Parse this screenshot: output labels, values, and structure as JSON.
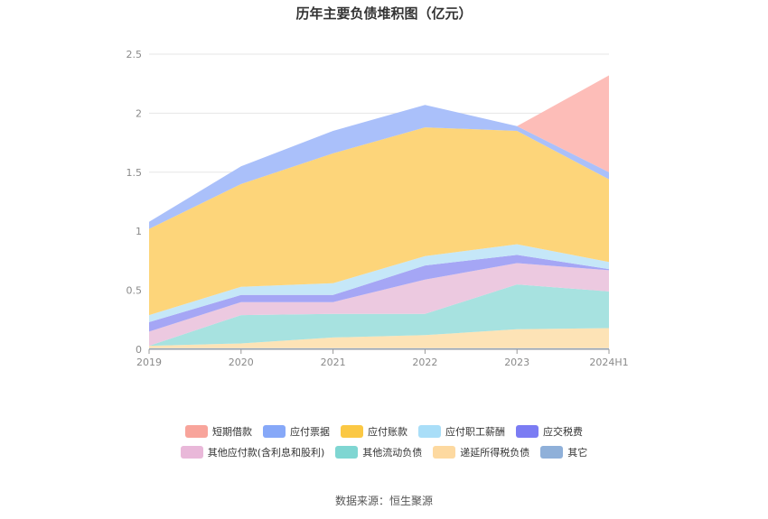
{
  "chart_data": {
    "type": "area",
    "stacked": true,
    "title": "历年主要负债堆积图（亿元）",
    "categories": [
      "2019",
      "2020",
      "2021",
      "2022",
      "2023",
      "2024H1"
    ],
    "ylim": [
      0,
      2.5
    ],
    "yticks": [
      "0",
      "0.5",
      "1",
      "1.5",
      "2",
      "2.5"
    ],
    "series": [
      {
        "name": "其它",
        "color": "#8fb0d9",
        "legend_color": "#8fb0d9",
        "values": [
          0.01,
          0.01,
          0.01,
          0.01,
          0.01,
          0.01
        ]
      },
      {
        "name": "递延所得税负债",
        "color": "#fde3b6",
        "legend_color": "#fdd9a0",
        "values": [
          0.02,
          0.04,
          0.09,
          0.11,
          0.16,
          0.17
        ]
      },
      {
        "name": "其他流动负债",
        "color": "#a7e2e0",
        "legend_color": "#7fd6d2",
        "values": [
          0.0,
          0.24,
          0.2,
          0.18,
          0.38,
          0.31
        ]
      },
      {
        "name": "其他应付款(含利息和股利)",
        "color": "#ecc9e0",
        "legend_color": "#e9b8d9",
        "values": [
          0.12,
          0.11,
          0.1,
          0.29,
          0.18,
          0.18
        ]
      },
      {
        "name": "应交税费",
        "color": "#a5a6f5",
        "legend_color": "#7b7cf3",
        "values": [
          0.08,
          0.06,
          0.06,
          0.12,
          0.07,
          0.01
        ]
      },
      {
        "name": "应付职工薪酬",
        "color": "#c5e7f8",
        "legend_color": "#a9def8",
        "values": [
          0.06,
          0.07,
          0.1,
          0.08,
          0.09,
          0.06
        ]
      },
      {
        "name": "应付账款",
        "color": "#fdd57a",
        "legend_color": "#fbc844",
        "values": [
          0.73,
          0.87,
          1.1,
          1.09,
          0.96,
          0.7
        ]
      },
      {
        "name": "应付票据",
        "color": "#aac0fa",
        "legend_color": "#86a8f8",
        "values": [
          0.06,
          0.15,
          0.19,
          0.19,
          0.04,
          0.06
        ]
      },
      {
        "name": "短期借款",
        "color": "#fdbdb8",
        "legend_color": "#f8a49b",
        "values": [
          0.0,
          0.0,
          0.0,
          0.0,
          0.0,
          0.82
        ]
      }
    ],
    "legend": {
      "rows": [
        [
          "短期借款",
          "应付票据",
          "应付账款",
          "应付职工薪酬",
          "应交税费"
        ],
        [
          "其他应付款(含利息和股利)",
          "其他流动负债",
          "递延所得税负债",
          "其它"
        ]
      ],
      "position": "bottom"
    }
  },
  "source": "数据来源：恒生聚源"
}
